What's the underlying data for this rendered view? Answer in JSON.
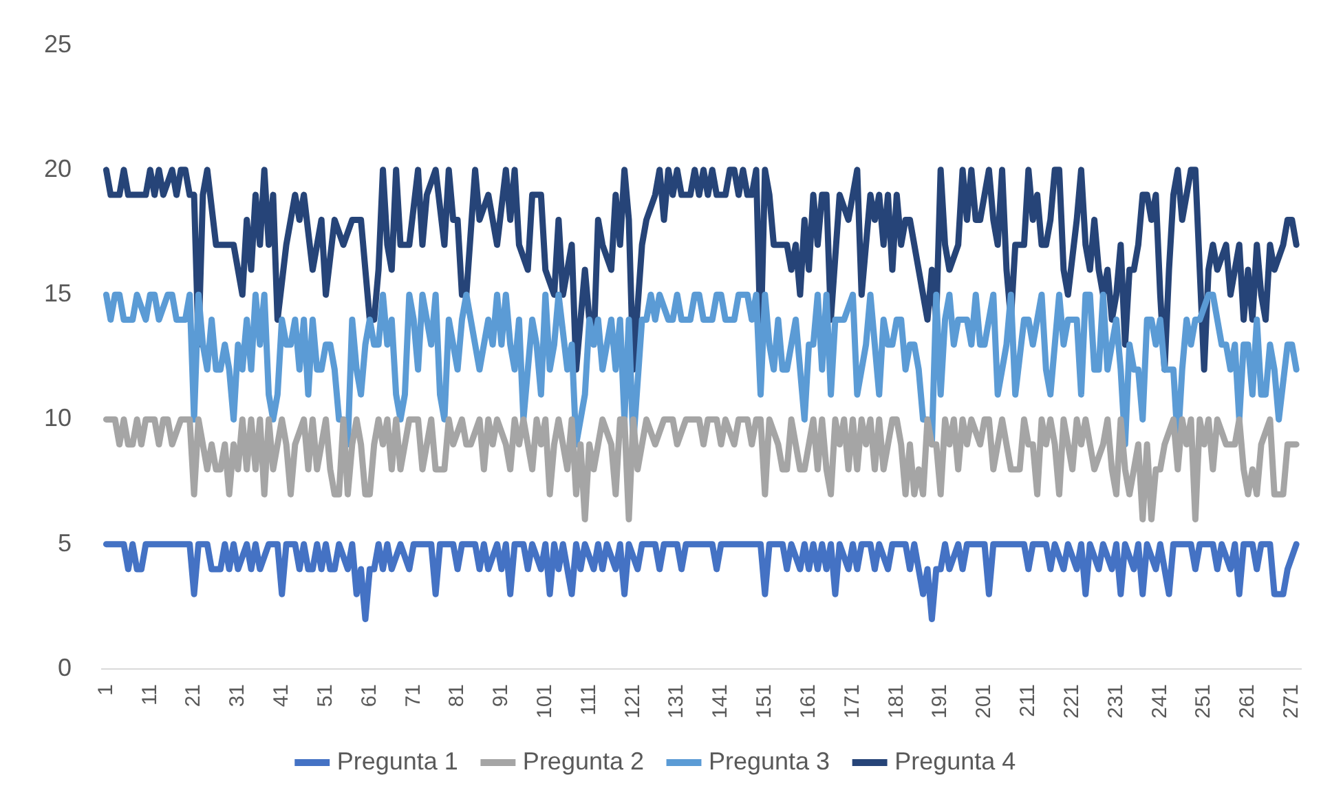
{
  "chart_data": {
    "type": "line",
    "xlim": [
      0,
      273
    ],
    "xticks": [
      1,
      11,
      21,
      31,
      41,
      51,
      61,
      71,
      81,
      91,
      101,
      111,
      121,
      131,
      141,
      151,
      161,
      171,
      181,
      191,
      201,
      211,
      221,
      231,
      241,
      251,
      261,
      271
    ],
    "ylim": [
      0,
      25
    ],
    "yticks": [
      0,
      5,
      10,
      15,
      20,
      25
    ],
    "grid": false,
    "legend": "bottom",
    "marker": "none",
    "line_style": "solid",
    "series": [
      {
        "name": "Pregunta 1",
        "color": "#4472c4",
        "x": [
          1,
          5,
          6,
          7,
          8,
          9,
          10,
          20,
          21,
          22,
          24,
          25,
          27,
          28,
          29,
          30,
          31,
          33,
          34,
          35,
          36,
          38,
          40,
          41,
          42,
          44,
          45,
          46,
          47,
          48,
          49,
          50,
          51,
          52,
          53,
          54,
          56,
          57,
          58,
          59,
          60,
          61,
          62,
          63,
          64,
          65,
          66,
          68,
          70,
          71,
          75,
          76,
          77,
          80,
          81,
          82,
          85,
          86,
          87,
          88,
          90,
          91,
          92,
          93,
          94,
          96,
          97,
          98,
          100,
          101,
          102,
          103,
          104,
          105,
          106,
          107,
          108,
          109,
          110,
          112,
          113,
          114,
          115,
          117,
          118,
          119,
          120,
          122,
          123,
          126,
          127,
          128,
          131,
          132,
          133,
          139,
          140,
          141,
          150,
          151,
          152,
          155,
          156,
          157,
          159,
          160,
          161,
          162,
          163,
          164,
          165,
          166,
          167,
          168,
          170,
          171,
          172,
          173,
          175,
          176,
          177,
          179,
          180,
          183,
          184,
          185,
          186,
          187,
          188,
          189,
          190,
          191,
          192,
          193,
          195,
          196,
          197,
          201,
          202,
          203,
          210,
          211,
          212,
          215,
          216,
          217,
          219,
          220,
          222,
          223,
          224,
          225,
          227,
          228,
          230,
          231,
          232,
          233,
          235,
          236,
          237,
          238,
          240,
          241,
          242,
          243,
          244,
          248,
          249,
          250,
          253,
          254,
          255,
          257,
          258,
          259,
          260,
          262,
          263,
          264,
          266,
          267,
          269,
          270,
          272
        ],
        "values": [
          5,
          5,
          4,
          5,
          4,
          4,
          5,
          5,
          3,
          5,
          5,
          4,
          4,
          5,
          4,
          5,
          4,
          5,
          4,
          5,
          4,
          5,
          5,
          3,
          5,
          5,
          4,
          5,
          4,
          4,
          5,
          4,
          5,
          4,
          4,
          5,
          4,
          5,
          3,
          4,
          2,
          4,
          4,
          5,
          4,
          5,
          4,
          5,
          4,
          5,
          5,
          3,
          5,
          5,
          4,
          5,
          5,
          4,
          5,
          4,
          5,
          4,
          5,
          3,
          5,
          5,
          4,
          5,
          4,
          5,
          3,
          5,
          4,
          5,
          4,
          3,
          5,
          4,
          5,
          4,
          5,
          4,
          5,
          4,
          5,
          3,
          5,
          4,
          5,
          5,
          4,
          5,
          5,
          4,
          5,
          5,
          4,
          5,
          5,
          3,
          5,
          5,
          4,
          5,
          4,
          5,
          4,
          5,
          4,
          5,
          4,
          5,
          3,
          5,
          4,
          5,
          4,
          5,
          5,
          4,
          5,
          4,
          5,
          5,
          4,
          5,
          4,
          3,
          4,
          2,
          4,
          4,
          5,
          4,
          5,
          4,
          5,
          5,
          3,
          5,
          5,
          4,
          5,
          5,
          4,
          5,
          4,
          5,
          4,
          5,
          3,
          5,
          4,
          5,
          4,
          5,
          3,
          5,
          4,
          5,
          3,
          5,
          4,
          5,
          4,
          3,
          5,
          5,
          4,
          5,
          5,
          4,
          5,
          4,
          5,
          3,
          5,
          5,
          4,
          5,
          5,
          3,
          3,
          4,
          5
        ]
      },
      {
        "name": "Pregunta 2",
        "color": "#a5a5a5",
        "x": [
          1,
          3,
          4,
          5,
          6,
          7,
          8,
          9,
          10,
          12,
          13,
          14,
          15,
          16,
          18,
          20,
          21,
          22,
          23,
          24,
          25,
          26,
          27,
          28,
          29,
          30,
          31,
          32,
          33,
          34,
          35,
          36,
          37,
          38,
          39,
          40,
          41,
          42,
          43,
          44,
          46,
          47,
          48,
          49,
          50,
          51,
          52,
          53,
          54,
          55,
          56,
          57,
          58,
          59,
          60,
          61,
          62,
          63,
          64,
          65,
          66,
          67,
          68,
          70,
          72,
          73,
          74,
          75,
          76,
          78,
          79,
          80,
          82,
          83,
          84,
          86,
          87,
          88,
          89,
          90,
          92,
          93,
          94,
          95,
          96,
          98,
          99,
          100,
          101,
          102,
          103,
          104,
          105,
          106,
          107,
          108,
          109,
          110,
          111,
          112,
          113,
          114,
          116,
          117,
          118,
          119,
          120,
          121,
          122,
          124,
          126,
          128,
          130,
          131,
          133,
          136,
          137,
          138,
          140,
          141,
          142,
          144,
          145,
          147,
          148,
          149,
          150,
          151,
          152,
          154,
          155,
          156,
          157,
          158,
          159,
          160,
          161,
          162,
          163,
          164,
          165,
          166,
          167,
          168,
          169,
          170,
          171,
          172,
          173,
          174,
          175,
          176,
          177,
          178,
          179,
          180,
          181,
          182,
          183,
          184,
          185,
          186,
          187,
          188,
          189,
          190,
          191,
          192,
          193,
          194,
          195,
          196,
          197,
          198,
          200,
          201,
          202,
          203,
          204,
          205,
          206,
          207,
          209,
          210,
          211,
          212,
          213,
          214,
          215,
          216,
          217,
          218,
          219,
          220,
          221,
          222,
          223,
          224,
          226,
          228,
          229,
          230,
          231,
          232,
          233,
          234,
          235,
          236,
          237,
          238,
          239,
          240,
          241,
          242,
          244,
          245,
          246,
          247,
          248,
          249,
          250,
          251,
          252,
          253,
          254,
          256,
          258,
          259,
          260,
          261,
          262,
          263,
          264,
          266,
          267,
          269,
          270,
          272
        ],
        "values": [
          10,
          10,
          9,
          10,
          9,
          9,
          10,
          9,
          10,
          10,
          9,
          10,
          10,
          9,
          10,
          10,
          7,
          10,
          9,
          8,
          9,
          8,
          8,
          9,
          7,
          9,
          8,
          10,
          8,
          10,
          8,
          10,
          7,
          10,
          8,
          9,
          10,
          9,
          7,
          9,
          10,
          8,
          10,
          8,
          9,
          10,
          8,
          7,
          7,
          10,
          7,
          9,
          10,
          9,
          7,
          7,
          9,
          10,
          9,
          10,
          8,
          10,
          8,
          10,
          10,
          8,
          9,
          10,
          8,
          8,
          10,
          9,
          10,
          9,
          9,
          10,
          8,
          10,
          9,
          10,
          9,
          8,
          10,
          9,
          10,
          8,
          10,
          9,
          10,
          7,
          9,
          10,
          9,
          8,
          10,
          7,
          9,
          6,
          9,
          8,
          9,
          10,
          9,
          7,
          10,
          10,
          6,
          10,
          8,
          10,
          9,
          10,
          10,
          9,
          10,
          10,
          9,
          10,
          10,
          9,
          10,
          9,
          10,
          10,
          9,
          10,
          10,
          7,
          10,
          9,
          8,
          8,
          10,
          9,
          8,
          8,
          9,
          10,
          8,
          10,
          8,
          7,
          10,
          9,
          10,
          8,
          10,
          8,
          10,
          9,
          10,
          8,
          10,
          8,
          9,
          10,
          10,
          9,
          7,
          9,
          7,
          8,
          7,
          10,
          9,
          9,
          7,
          10,
          9,
          10,
          8,
          10,
          9,
          10,
          9,
          10,
          10,
          8,
          9,
          10,
          9,
          8,
          8,
          10,
          9,
          9,
          7,
          10,
          9,
          10,
          9,
          7,
          10,
          9,
          8,
          10,
          9,
          10,
          8,
          9,
          10,
          8,
          7,
          10,
          8,
          7,
          8,
          9,
          6,
          9,
          6,
          8,
          8,
          9,
          10,
          8,
          10,
          9,
          10,
          6,
          10,
          9,
          10,
          8,
          10,
          9,
          9,
          10,
          8,
          7,
          8,
          7,
          9,
          10,
          7,
          7,
          9,
          9
        ]
      },
      {
        "name": "Pregunta 3",
        "color": "#5b9bd5",
        "x": [
          1,
          2,
          3,
          4,
          5,
          7,
          8,
          10,
          11,
          12,
          13,
          15,
          16,
          17,
          19,
          20,
          21,
          22,
          23,
          24,
          25,
          26,
          27,
          28,
          29,
          30,
          31,
          32,
          33,
          34,
          35,
          36,
          37,
          38,
          39,
          40,
          41,
          42,
          43,
          44,
          45,
          46,
          47,
          48,
          49,
          50,
          51,
          52,
          53,
          54,
          55,
          56,
          57,
          58,
          59,
          60,
          61,
          62,
          63,
          64,
          65,
          66,
          67,
          68,
          69,
          70,
          71,
          72,
          73,
          74,
          75,
          76,
          77,
          78,
          79,
          80,
          81,
          82,
          83,
          84,
          86,
          88,
          89,
          90,
          91,
          92,
          93,
          94,
          95,
          96,
          97,
          98,
          99,
          100,
          101,
          102,
          103,
          104,
          106,
          107,
          108,
          110,
          111,
          112,
          113,
          114,
          115,
          116,
          117,
          118,
          119,
          120,
          121,
          123,
          124,
          125,
          126,
          127,
          129,
          130,
          131,
          132,
          134,
          135,
          136,
          137,
          139,
          140,
          141,
          142,
          144,
          145,
          147,
          148,
          149,
          150,
          151,
          152,
          153,
          154,
          155,
          156,
          157,
          158,
          159,
          160,
          161,
          162,
          163,
          164,
          165,
          166,
          167,
          169,
          171,
          172,
          174,
          175,
          176,
          177,
          178,
          179,
          180,
          181,
          182,
          183,
          184,
          185,
          186,
          187,
          188,
          189,
          190,
          191,
          192,
          193,
          194,
          195,
          197,
          198,
          199,
          200,
          201,
          202,
          203,
          204,
          205,
          206,
          207,
          208,
          210,
          211,
          212,
          213,
          214,
          215,
          216,
          218,
          219,
          220,
          222,
          223,
          224,
          225,
          226,
          227,
          228,
          229,
          230,
          231,
          232,
          233,
          234,
          235,
          236,
          237,
          238,
          239,
          240,
          241,
          242,
          244,
          245,
          246,
          247,
          248,
          249,
          250,
          252,
          253,
          254,
          255,
          256,
          257,
          258,
          259,
          260,
          261,
          262,
          263,
          264,
          265,
          266,
          267,
          268,
          270,
          271,
          272
        ],
        "values": [
          15,
          14,
          15,
          15,
          14,
          14,
          15,
          14,
          15,
          15,
          14,
          15,
          15,
          14,
          14,
          15,
          10,
          15,
          13,
          12,
          14,
          12,
          12,
          13,
          12,
          10,
          13,
          12,
          14,
          12,
          15,
          13,
          15,
          11,
          10,
          11,
          14,
          13,
          13,
          14,
          12,
          14,
          11,
          14,
          12,
          12,
          13,
          13,
          12,
          10,
          10,
          9,
          14,
          12,
          11,
          13,
          14,
          13,
          13,
          15,
          13,
          14,
          11,
          10,
          11,
          15,
          14,
          12,
          15,
          14,
          13,
          15,
          11,
          10,
          14,
          13,
          12,
          14,
          15,
          14,
          12,
          14,
          13,
          15,
          13,
          15,
          13,
          12,
          14,
          10,
          12,
          14,
          13,
          11,
          15,
          12,
          13,
          15,
          12,
          13,
          9,
          11,
          14,
          13,
          14,
          12,
          13,
          14,
          12,
          14,
          10,
          14,
          9,
          14,
          14,
          15,
          14,
          15,
          14,
          14,
          15,
          14,
          14,
          15,
          15,
          14,
          14,
          15,
          15,
          14,
          14,
          15,
          15,
          14,
          15,
          11,
          15,
          13,
          12,
          14,
          12,
          12,
          13,
          14,
          12,
          10,
          13,
          13,
          15,
          12,
          15,
          11,
          14,
          14,
          15,
          11,
          13,
          15,
          13,
          11,
          14,
          13,
          13,
          14,
          14,
          12,
          13,
          13,
          12,
          10,
          10,
          9,
          15,
          11,
          14,
          15,
          13,
          14,
          14,
          13,
          15,
          13,
          13,
          14,
          15,
          11,
          12,
          13,
          15,
          11,
          14,
          14,
          13,
          14,
          15,
          12,
          11,
          15,
          13,
          14,
          14,
          11,
          15,
          15,
          12,
          12,
          15,
          12,
          13,
          14,
          12,
          9,
          13,
          12,
          12,
          10,
          14,
          14,
          13,
          14,
          12,
          12,
          9,
          12,
          14,
          13,
          14,
          14,
          15,
          15,
          14,
          13,
          13,
          12,
          13,
          10,
          13,
          13,
          11,
          14,
          11,
          11,
          13,
          12,
          10,
          13,
          13,
          12
        ]
      },
      {
        "name": "Pregunta 4",
        "color": "#264478",
        "x": [
          1,
          2,
          4,
          5,
          6,
          10,
          11,
          12,
          13,
          14,
          16,
          17,
          18,
          19,
          20,
          21,
          22,
          23,
          24,
          26,
          30,
          31,
          32,
          33,
          34,
          35,
          36,
          37,
          38,
          39,
          40,
          42,
          44,
          45,
          46,
          48,
          50,
          51,
          53,
          55,
          57,
          59,
          61,
          62,
          63,
          64,
          65,
          66,
          67,
          68,
          70,
          72,
          73,
          74,
          76,
          78,
          79,
          80,
          81,
          82,
          83,
          85,
          86,
          88,
          90,
          92,
          93,
          94,
          95,
          97,
          98,
          100,
          101,
          103,
          104,
          105,
          107,
          108,
          110,
          111,
          112,
          113,
          114,
          116,
          117,
          118,
          119,
          120,
          121,
          123,
          124,
          126,
          127,
          128,
          129,
          130,
          131,
          132,
          134,
          135,
          136,
          137,
          138,
          139,
          140,
          142,
          143,
          144,
          145,
          146,
          147,
          148,
          149,
          150,
          151,
          152,
          153,
          156,
          157,
          158,
          159,
          160,
          161,
          162,
          163,
          164,
          165,
          166,
          168,
          170,
          172,
          173,
          175,
          176,
          177,
          178,
          179,
          180,
          181,
          182,
          183,
          184,
          187,
          188,
          189,
          190,
          191,
          192,
          193,
          195,
          196,
          197,
          198,
          199,
          200,
          201,
          202,
          203,
          204,
          205,
          206,
          207,
          208,
          210,
          211,
          212,
          213,
          214,
          215,
          216,
          217,
          218,
          219,
          220,
          222,
          223,
          224,
          225,
          226,
          227,
          228,
          229,
          230,
          231,
          232,
          233,
          234,
          235,
          236,
          237,
          238,
          239,
          240,
          241,
          242,
          243,
          244,
          245,
          246,
          247,
          248,
          249,
          251,
          252,
          253,
          254,
          256,
          257,
          258,
          259,
          260,
          261,
          262,
          263,
          264,
          265,
          266,
          267,
          269,
          270,
          271,
          272
        ],
        "values": [
          20,
          19,
          19,
          20,
          19,
          19,
          20,
          19,
          20,
          19,
          20,
          19,
          20,
          20,
          19,
          19,
          13,
          19,
          20,
          17,
          17,
          16,
          15,
          18,
          16,
          19,
          17,
          20,
          17,
          19,
          14,
          17,
          19,
          18,
          19,
          16,
          18,
          15,
          18,
          17,
          18,
          18,
          14,
          14,
          16,
          20,
          17,
          16,
          20,
          17,
          17,
          20,
          17,
          19,
          20,
          17,
          20,
          18,
          18,
          15,
          15,
          20,
          18,
          19,
          17,
          20,
          18,
          20,
          17,
          16,
          19,
          19,
          16,
          15,
          18,
          15,
          17,
          12,
          16,
          14,
          13,
          18,
          17,
          16,
          19,
          17,
          20,
          18,
          12,
          17,
          18,
          19,
          20,
          18,
          20,
          19,
          20,
          19,
          19,
          20,
          19,
          20,
          19,
          20,
          19,
          19,
          20,
          20,
          19,
          20,
          19,
          19,
          20,
          13,
          20,
          19,
          17,
          17,
          16,
          17,
          15,
          18,
          16,
          19,
          17,
          19,
          19,
          14,
          19,
          18,
          20,
          15,
          19,
          18,
          19,
          17,
          19,
          16,
          19,
          17,
          18,
          18,
          15,
          14,
          16,
          14,
          20,
          17,
          16,
          17,
          20,
          18,
          20,
          18,
          18,
          19,
          20,
          18,
          17,
          20,
          16,
          14,
          17,
          17,
          20,
          18,
          19,
          17,
          17,
          18,
          20,
          20,
          16,
          15,
          18,
          20,
          17,
          16,
          18,
          16,
          15,
          16,
          14,
          15,
          17,
          13,
          16,
          16,
          17,
          19,
          19,
          18,
          19,
          15,
          12,
          16,
          19,
          20,
          18,
          19,
          20,
          20,
          12,
          16,
          17,
          16,
          17,
          15,
          16,
          17,
          14,
          16,
          14,
          17,
          15,
          14,
          17,
          16,
          17,
          18,
          18,
          17
        ]
      }
    ]
  }
}
